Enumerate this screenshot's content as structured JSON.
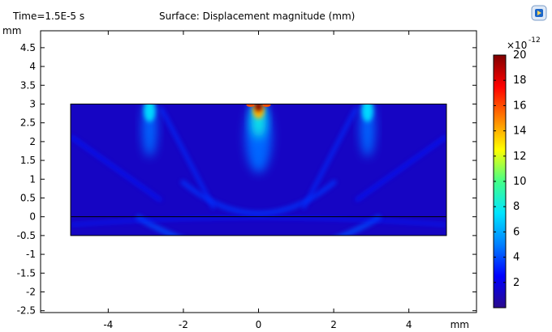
{
  "header": {
    "time_label": "Time=1.5E-5 s",
    "title": "Surface: Displacement magnitude (mm)"
  },
  "toolbar": {
    "icon": "export-image-icon"
  },
  "chart_data": {
    "type": "heatmap",
    "title": "Surface: Displacement magnitude (mm)",
    "time_label": "Time=1.5E-5 s",
    "xlabel": "mm",
    "ylabel": "mm",
    "xlim": [
      -5.8,
      5.8
    ],
    "ylim": [
      -2.55,
      4.95
    ],
    "x_ticks": [
      {
        "value": -4,
        "label": "-4"
      },
      {
        "value": -2,
        "label": "-2"
      },
      {
        "value": 0,
        "label": "0"
      },
      {
        "value": 2,
        "label": "2"
      },
      {
        "value": 4,
        "label": "4"
      }
    ],
    "y_ticks": [
      {
        "value": 4.5,
        "label": "4.5"
      },
      {
        "value": 4,
        "label": "4"
      },
      {
        "value": 3.5,
        "label": "3.5"
      },
      {
        "value": 3,
        "label": "3"
      },
      {
        "value": 2.5,
        "label": "2.5"
      },
      {
        "value": 2,
        "label": "2"
      },
      {
        "value": 1.5,
        "label": "1.5"
      },
      {
        "value": 1,
        "label": "1"
      },
      {
        "value": 0.5,
        "label": "0.5"
      },
      {
        "value": 0,
        "label": "0"
      },
      {
        "value": -0.5,
        "label": "-0.5"
      },
      {
        "value": -1,
        "label": "-1"
      },
      {
        "value": -1.5,
        "label": "-1.5"
      },
      {
        "value": -2,
        "label": "-2"
      },
      {
        "value": -2.5,
        "label": "-2.5"
      }
    ],
    "domain": {
      "x": [
        -5,
        5
      ],
      "y": [
        -0.5,
        3
      ]
    },
    "interface_y": 0,
    "hotspots": [
      {
        "x": 0,
        "y": 3,
        "value": 20
      },
      {
        "x": -2.9,
        "y": 3,
        "value": 9
      },
      {
        "x": 2.9,
        "y": 3,
        "value": 9
      }
    ],
    "colorbar": {
      "multiplier": "×10",
      "exponent": "-12",
      "min": 0,
      "max": 20,
      "ticks": [
        {
          "value": 20,
          "label": "20"
        },
        {
          "value": 18,
          "label": "18"
        },
        {
          "value": 16,
          "label": "16"
        },
        {
          "value": 14,
          "label": "14"
        },
        {
          "value": 12,
          "label": "12"
        },
        {
          "value": 10,
          "label": "10"
        },
        {
          "value": 8,
          "label": "8"
        },
        {
          "value": 6,
          "label": "6"
        },
        {
          "value": 4,
          "label": "4"
        },
        {
          "value": 2,
          "label": "2"
        }
      ],
      "colormap": [
        "#2a0a8c",
        "#0000ff",
        "#0080ff",
        "#00e5ff",
        "#44ff88",
        "#ffff00",
        "#ff8000",
        "#ff0000",
        "#800000"
      ]
    }
  }
}
